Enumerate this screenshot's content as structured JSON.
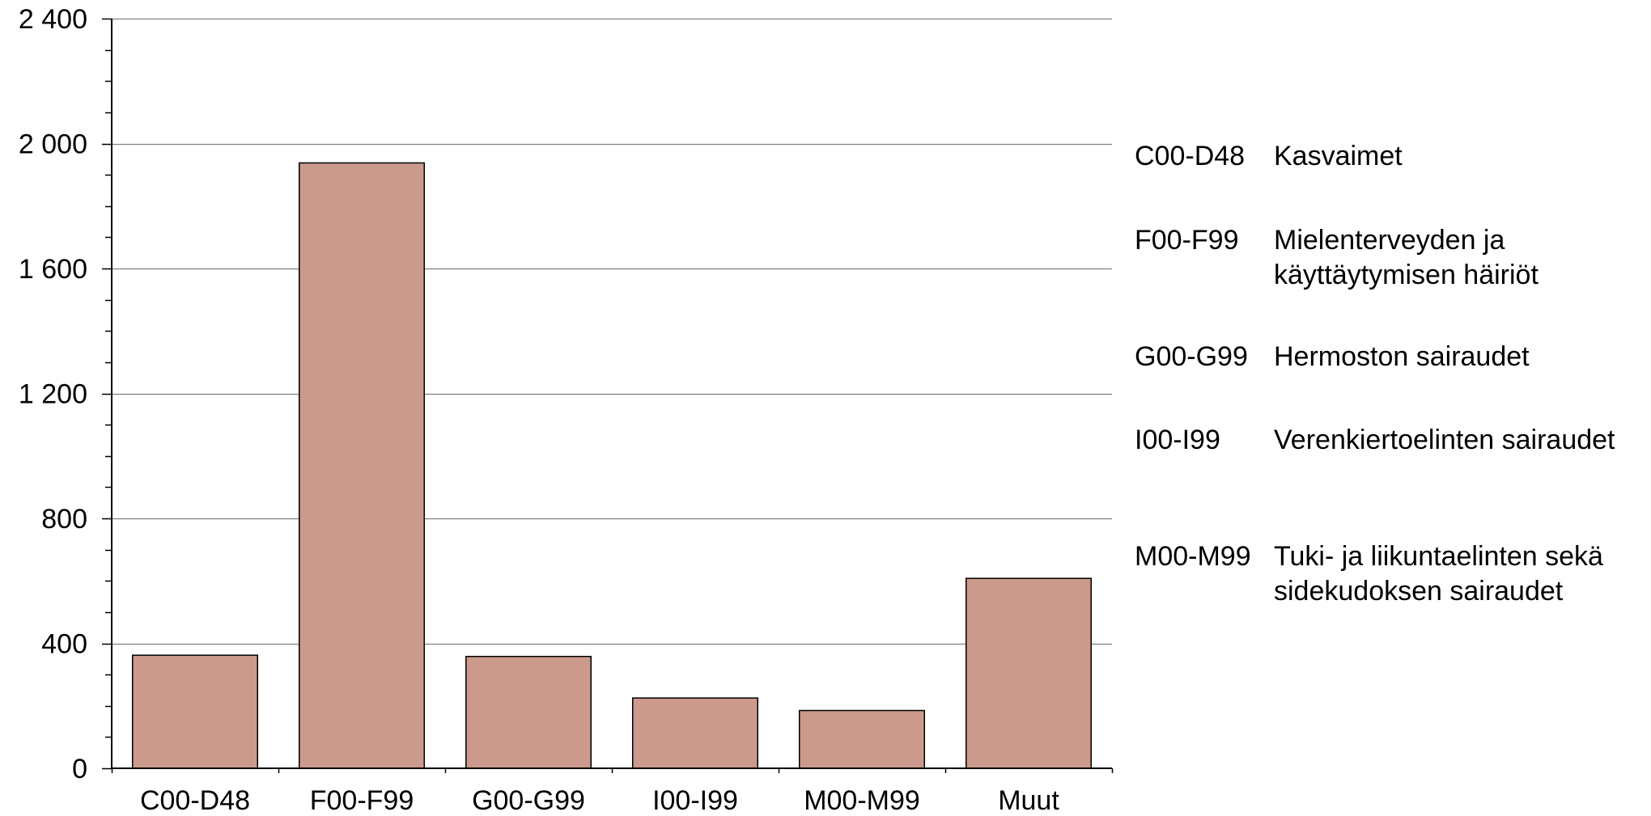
{
  "chart_data": {
    "type": "bar",
    "title": "",
    "xlabel": "",
    "ylabel": "",
    "categories": [
      "C00-D48",
      "F00-F99",
      "G00-G99",
      "I00-I99",
      "M00-M99",
      "Muut"
    ],
    "values": [
      362,
      1938,
      358,
      225,
      185,
      608
    ],
    "ylim": [
      0,
      2400
    ],
    "yticks": [
      0,
      400,
      800,
      1200,
      1600,
      2000,
      2400
    ],
    "ytick_labels": [
      "0",
      "400",
      "800",
      "1 200",
      "1 600",
      "2 000",
      "2 400"
    ],
    "minor_tick_step": 100,
    "grid": true,
    "colors": {
      "bar": "#cc9a8c",
      "bar_edge": "#000000",
      "grid": "#808080"
    },
    "legend": [
      {
        "code": "C00-D48",
        "description": "Kasvaimet"
      },
      {
        "code": "F00-F99",
        "description": "Mielenterveyden ja käyttäytymisen häiriöt"
      },
      {
        "code": "G00-G99",
        "description": "Hermoston sairaudet"
      },
      {
        "code": "I00-I99",
        "description": "Verenkiertoelinten sairaudet"
      },
      {
        "code": "M00-M99",
        "description": "Tuki- ja liikuntaelinten sekä sidekudoksen sairaudet"
      }
    ]
  }
}
